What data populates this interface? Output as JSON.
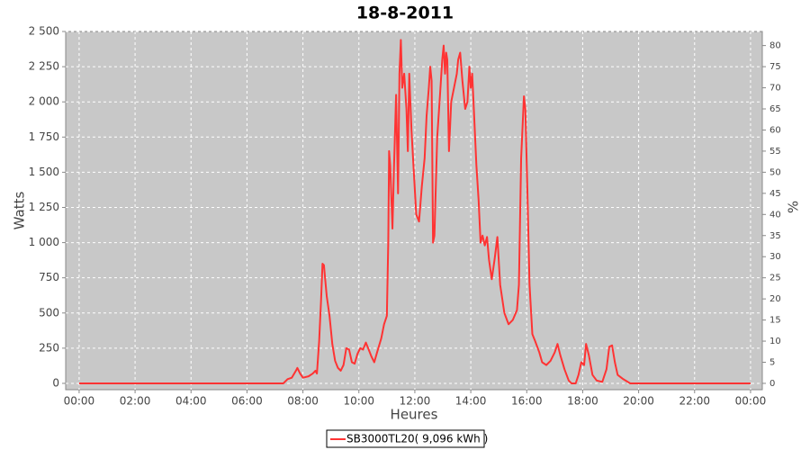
{
  "chart_data": {
    "type": "line",
    "title": "18-8-2011",
    "x_label": "Heures",
    "y_label": "Watts",
    "y2_label": "%",
    "x": [
      0,
      7.3,
      7.45,
      7.6,
      7.75,
      7.8,
      7.9,
      8.0,
      8.2,
      8.35,
      8.45,
      8.5,
      8.58,
      8.65,
      8.7,
      8.75,
      8.85,
      8.95,
      9.05,
      9.15,
      9.25,
      9.35,
      9.45,
      9.55,
      9.65,
      9.75,
      9.85,
      9.95,
      10.05,
      10.15,
      10.25,
      10.35,
      10.45,
      10.55,
      10.65,
      10.8,
      10.9,
      11.0,
      11.05,
      11.08,
      11.12,
      11.2,
      11.25,
      11.33,
      11.4,
      11.45,
      11.5,
      11.55,
      11.62,
      11.7,
      11.75,
      11.8,
      11.88,
      11.95,
      12.05,
      12.15,
      12.25,
      12.35,
      12.42,
      12.5,
      12.55,
      12.6,
      12.65,
      12.7,
      12.8,
      12.9,
      12.98,
      13.03,
      13.08,
      13.12,
      13.16,
      13.22,
      13.3,
      13.4,
      13.5,
      13.55,
      13.62,
      13.7,
      13.8,
      13.88,
      13.95,
      14.0,
      14.05,
      14.12,
      14.2,
      14.28,
      14.35,
      14.42,
      14.5,
      14.58,
      14.65,
      14.75,
      14.85,
      14.95,
      15.05,
      15.2,
      15.35,
      15.5,
      15.65,
      15.72,
      15.8,
      15.9,
      15.95,
      16.02,
      16.1,
      16.2,
      16.3,
      16.45,
      16.55,
      16.7,
      16.85,
      17.0,
      17.1,
      17.2,
      17.35,
      17.5,
      17.6,
      17.75,
      17.85,
      17.95,
      18.05,
      18.12,
      18.22,
      18.35,
      18.5,
      18.7,
      18.85,
      18.95,
      19.05,
      19.15,
      19.25,
      19.45,
      19.7,
      24.0
    ],
    "series": [
      {
        "name": "SB3000TL20( 9,096 kWh )",
        "color": "#ff3333",
        "values": [
          0,
          0,
          30,
          40,
          90,
          110,
          70,
          40,
          50,
          70,
          90,
          70,
          300,
          600,
          850,
          840,
          620,
          480,
          280,
          160,
          110,
          90,
          130,
          250,
          240,
          150,
          140,
          210,
          250,
          240,
          290,
          240,
          190,
          150,
          220,
          320,
          420,
          480,
          1000,
          1650,
          1550,
          1100,
          1500,
          2050,
          1350,
          2200,
          2440,
          2100,
          2200,
          1950,
          1650,
          2200,
          1800,
          1550,
          1200,
          1150,
          1400,
          1600,
          1900,
          2100,
          2250,
          2150,
          1000,
          1050,
          1750,
          2050,
          2300,
          2400,
          2200,
          2350,
          2300,
          1650,
          2000,
          2100,
          2200,
          2300,
          2350,
          2150,
          1950,
          2000,
          2250,
          2100,
          2200,
          1900,
          1550,
          1300,
          1000,
          1050,
          980,
          1040,
          880,
          740,
          880,
          1040,
          700,
          500,
          420,
          450,
          520,
          700,
          1600,
          2040,
          1950,
          1400,
          700,
          350,
          300,
          220,
          150,
          130,
          160,
          220,
          280,
          200,
          100,
          20,
          0,
          0,
          60,
          150,
          130,
          280,
          200,
          60,
          20,
          10,
          100,
          260,
          270,
          150,
          60,
          30,
          0,
          0
        ]
      }
    ],
    "xlim": [
      -0.48,
      24.42
    ],
    "xticks": [
      {
        "value": 0,
        "label": "00:00"
      },
      {
        "value": 2,
        "label": "02:00"
      },
      {
        "value": 4,
        "label": "04:00"
      },
      {
        "value": 6,
        "label": "06:00"
      },
      {
        "value": 8,
        "label": "08:00"
      },
      {
        "value": 10,
        "label": "10:00"
      },
      {
        "value": 12,
        "label": "12:00"
      },
      {
        "value": 14,
        "label": "14:00"
      },
      {
        "value": 16,
        "label": "16:00"
      },
      {
        "value": 18,
        "label": "18:00"
      },
      {
        "value": 20,
        "label": "20:00"
      },
      {
        "value": 22,
        "label": "22:00"
      },
      {
        "value": 24,
        "label": "00:00"
      }
    ],
    "ylim": [
      -45,
      2500
    ],
    "yticks": [
      0,
      250,
      500,
      750,
      {
        "value": 1000,
        "label": "1 000"
      },
      {
        "value": 1250,
        "label": "1 250"
      },
      {
        "value": 1500,
        "label": "1 500"
      },
      {
        "value": 1750,
        "label": "1 750"
      },
      {
        "value": 2000,
        "label": "2 000"
      },
      {
        "value": 2250,
        "label": "2 250"
      },
      {
        "value": 2500,
        "label": "2 500"
      }
    ],
    "y2lim": [
      -1.5,
      83.33
    ],
    "y2ticks": [
      0,
      5,
      10,
      15,
      20,
      25,
      30,
      35,
      40,
      45,
      50,
      55,
      60,
      65,
      70,
      75,
      80
    ],
    "grid": true,
    "legend": "bottom"
  }
}
